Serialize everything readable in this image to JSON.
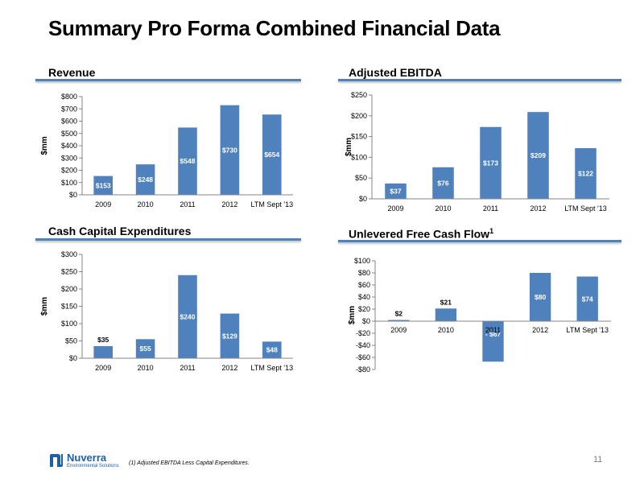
{
  "page": {
    "title": "Summary Pro Forma Combined Financial Data",
    "page_number": "11",
    "footnote": "(1)    Adjusted EBITDA Less Capital Expenditures."
  },
  "logo": {
    "name": "Nuverra",
    "tagline": "Environmental Solutions"
  },
  "colors": {
    "bar": "#4f81bd",
    "rule": "#4f81bd",
    "label_light": "#ffffff",
    "label_dark": "#000000"
  },
  "chart_data": [
    {
      "type": "bar",
      "title": "Revenue",
      "ylabel": "$mm",
      "categories": [
        "2009",
        "2010",
        "2011",
        "2012",
        "LTM Sept '13"
      ],
      "values": [
        153,
        248,
        548,
        730,
        654
      ],
      "data_labels": [
        "$153",
        "$248",
        "$548",
        "$730",
        "$654"
      ],
      "ylim": [
        0,
        800
      ],
      "yticks": [
        0,
        100,
        200,
        300,
        400,
        500,
        600,
        700,
        800
      ],
      "ytick_labels": [
        "$0",
        "$100",
        "$200",
        "$300",
        "$400",
        "$500",
        "$600",
        "$700",
        "$800"
      ],
      "grid": false
    },
    {
      "type": "bar",
      "title": "Adjusted EBITDA",
      "ylabel": "$mm",
      "categories": [
        "2009",
        "2010",
        "2011",
        "2012",
        "LTM Sept '13"
      ],
      "values": [
        37,
        76,
        173,
        209,
        122
      ],
      "data_labels": [
        "$37",
        "$76",
        "$173",
        "$209",
        "$122"
      ],
      "ylim": [
        0,
        250
      ],
      "yticks": [
        0,
        50,
        100,
        150,
        200,
        250
      ],
      "ytick_labels": [
        "$0",
        "$50",
        "$100",
        "$150",
        "$200",
        "$250"
      ],
      "grid": false
    },
    {
      "type": "bar",
      "title": "Cash Capital Expenditures",
      "ylabel": "$mm",
      "categories": [
        "2009",
        "2010",
        "2011",
        "2012",
        "LTM Sept '13"
      ],
      "values": [
        35,
        55,
        240,
        129,
        48
      ],
      "data_labels": [
        "$35",
        "$55",
        "$240",
        "$129",
        "$48"
      ],
      "ylim": [
        0,
        300
      ],
      "yticks": [
        0,
        50,
        100,
        150,
        200,
        250,
        300
      ],
      "ytick_labels": [
        "$0",
        "$50",
        "$100",
        "$150",
        "$200",
        "$250",
        "$300"
      ],
      "grid": false
    },
    {
      "type": "bar",
      "title": "Unlevered Free Cash Flow",
      "title_superscript": "1",
      "ylabel": "$mm",
      "categories": [
        "2009",
        "2010",
        "2011",
        "2012",
        "LTM Sept '13"
      ],
      "values": [
        2,
        21,
        -67,
        80,
        74
      ],
      "data_labels": [
        "$2",
        "$21",
        "- $67",
        "$80",
        "$74"
      ],
      "ylim": [
        -80,
        100
      ],
      "yticks": [
        -80,
        -60,
        -40,
        -20,
        0,
        20,
        40,
        60,
        80,
        100
      ],
      "ytick_labels": [
        "-$80",
        "-$60",
        "-$40",
        "-$20",
        "$0",
        "$20",
        "$40",
        "$60",
        "$80",
        "$100"
      ],
      "grid": false
    }
  ]
}
